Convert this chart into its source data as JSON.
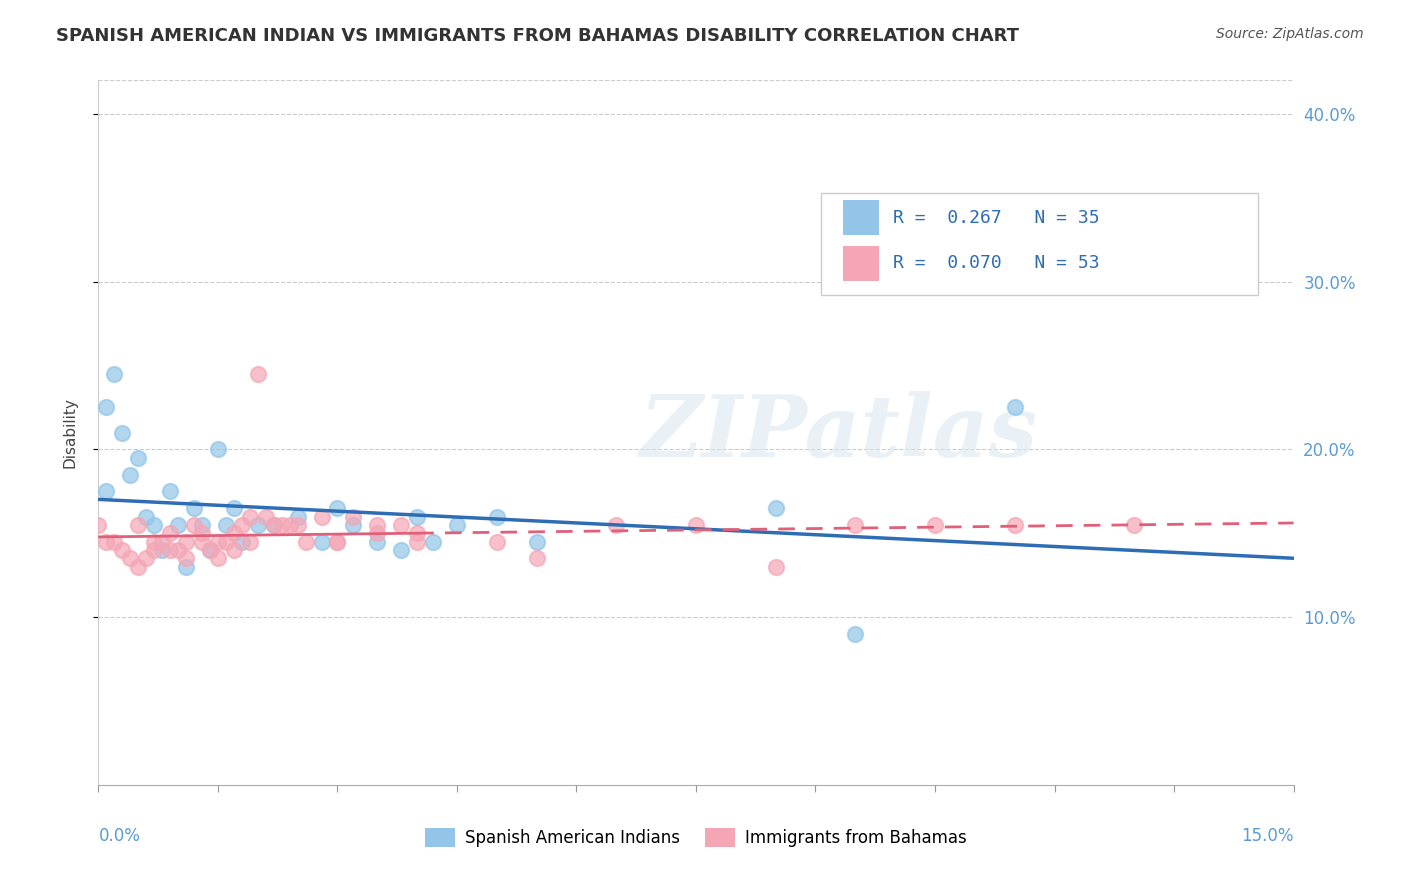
{
  "title": "SPANISH AMERICAN INDIAN VS IMMIGRANTS FROM BAHAMAS DISABILITY CORRELATION CHART",
  "source": "Source: ZipAtlas.com",
  "watermark": "ZIPatlas",
  "ylabel": "Disability",
  "xmin": 0.0,
  "xmax": 0.15,
  "ymin": 0.0,
  "ymax": 0.42,
  "yticks": [
    0.1,
    0.2,
    0.3,
    0.4
  ],
  "ytick_labels": [
    "10.0%",
    "20.0%",
    "30.0%",
    "40.0%"
  ],
  "legend_r1": "0.267",
  "legend_n1": "35",
  "legend_r2": "0.070",
  "legend_n2": "53",
  "color_blue": "#92c5e8",
  "color_pink": "#f4a6b5",
  "trendline_blue": "#2e6db4",
  "trendline_pink": "#e0607a",
  "s1_x": [
    0.001,
    0.002,
    0.003,
    0.004,
    0.005,
    0.006,
    0.007,
    0.008,
    0.009,
    0.01,
    0.011,
    0.012,
    0.013,
    0.014,
    0.015,
    0.016,
    0.017,
    0.018,
    0.02,
    0.022,
    0.025,
    0.028,
    0.03,
    0.032,
    0.035,
    0.038,
    0.04,
    0.042,
    0.045,
    0.05,
    0.055,
    0.085,
    0.095,
    0.115,
    0.001
  ],
  "s1_y": [
    0.225,
    0.245,
    0.21,
    0.185,
    0.195,
    0.16,
    0.155,
    0.14,
    0.175,
    0.155,
    0.13,
    0.165,
    0.155,
    0.14,
    0.2,
    0.155,
    0.165,
    0.145,
    0.155,
    0.155,
    0.16,
    0.145,
    0.165,
    0.155,
    0.145,
    0.14,
    0.16,
    0.145,
    0.155,
    0.16,
    0.145,
    0.165,
    0.09,
    0.225,
    0.175
  ],
  "s2_x": [
    0.0,
    0.001,
    0.002,
    0.003,
    0.004,
    0.005,
    0.006,
    0.007,
    0.008,
    0.009,
    0.01,
    0.011,
    0.012,
    0.013,
    0.014,
    0.015,
    0.016,
    0.017,
    0.018,
    0.019,
    0.02,
    0.022,
    0.024,
    0.026,
    0.028,
    0.03,
    0.032,
    0.035,
    0.038,
    0.04,
    0.005,
    0.007,
    0.009,
    0.011,
    0.013,
    0.015,
    0.017,
    0.019,
    0.021,
    0.023,
    0.025,
    0.03,
    0.035,
    0.04,
    0.05,
    0.055,
    0.065,
    0.075,
    0.085,
    0.095,
    0.105,
    0.115,
    0.13
  ],
  "s2_y": [
    0.155,
    0.145,
    0.145,
    0.14,
    0.135,
    0.13,
    0.135,
    0.14,
    0.145,
    0.15,
    0.14,
    0.135,
    0.155,
    0.145,
    0.14,
    0.135,
    0.145,
    0.14,
    0.155,
    0.145,
    0.245,
    0.155,
    0.155,
    0.145,
    0.16,
    0.145,
    0.16,
    0.155,
    0.155,
    0.15,
    0.155,
    0.145,
    0.14,
    0.145,
    0.15,
    0.145,
    0.15,
    0.16,
    0.16,
    0.155,
    0.155,
    0.145,
    0.15,
    0.145,
    0.145,
    0.135,
    0.155,
    0.155,
    0.13,
    0.155,
    0.155,
    0.155,
    0.155
  ]
}
